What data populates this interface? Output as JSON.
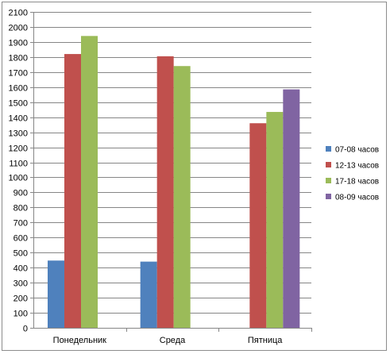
{
  "chart_data": {
    "type": "bar",
    "title": "",
    "xlabel": "",
    "ylabel": "",
    "ylim": [
      0,
      2100
    ],
    "ytick_step": 100,
    "grid": true,
    "legend_position": "right",
    "categories": [
      "Понедельник",
      "Среда",
      "Пятница"
    ],
    "series": [
      {
        "name": "07-08 часов",
        "color": "#4f81bd",
        "values": [
          447,
          440,
          null
        ]
      },
      {
        "name": "12-13 часов",
        "color": "#c0504d",
        "values": [
          1820,
          1805,
          1360
        ]
      },
      {
        "name": "17-18 часов",
        "color": "#9bbb59",
        "values": [
          1940,
          1740,
          1435
        ]
      },
      {
        "name": "08-09 часов",
        "color": "#8064a2",
        "values": [
          null,
          null,
          1585
        ]
      }
    ]
  }
}
